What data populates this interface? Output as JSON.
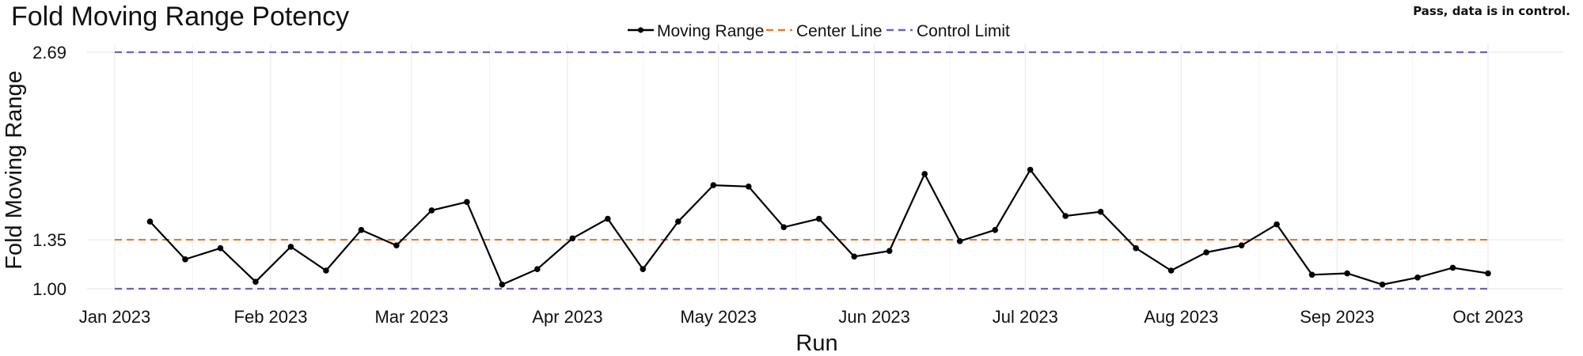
{
  "header": {
    "title": "Fold Moving Range Potency",
    "status": "Pass, data is in control."
  },
  "chart_data": {
    "type": "line",
    "title": "Fold Moving Range Potency",
    "xlabel": "Run",
    "ylabel": "Fold Moving Range",
    "ylim": [
      1.0,
      2.69
    ],
    "y_ticks": [
      1.0,
      1.35,
      2.69
    ],
    "y_tick_labels": [
      "1.00",
      "1.35",
      "2.69"
    ],
    "x_ticks": [
      "2023-01-01",
      "2023-02-01",
      "2023-03-01",
      "2023-04-01",
      "2023-05-01",
      "2023-06-01",
      "2023-07-01",
      "2023-08-01",
      "2023-09-01",
      "2023-10-01"
    ],
    "x_tick_labels": [
      "Jan 2023",
      "Feb 2023",
      "Mar 2023",
      "Apr 2023",
      "May 2023",
      "Jun 2023",
      "Jul 2023",
      "Aug 2023",
      "Sep 2023",
      "Oct 2023"
    ],
    "grid": true,
    "legend_position": "top",
    "center_line": 1.35,
    "control_limits": [
      1.0,
      2.69
    ],
    "colors": {
      "moving_range": "#000000",
      "center_line": "#E8792B",
      "control_limit": "#6B63B5",
      "grid": "#EBEBEB"
    },
    "series": [
      {
        "name": "Moving Range",
        "points": [
          [
            "2023-01-08",
            1.48
          ],
          [
            "2023-01-15",
            1.21
          ],
          [
            "2023-01-22",
            1.29
          ],
          [
            "2023-01-29",
            1.05
          ],
          [
            "2023-02-05",
            1.3
          ],
          [
            "2023-02-12",
            1.13
          ],
          [
            "2023-02-19",
            1.42
          ],
          [
            "2023-02-26",
            1.31
          ],
          [
            "2023-03-05",
            1.56
          ],
          [
            "2023-03-12",
            1.62
          ],
          [
            "2023-03-19",
            1.03
          ],
          [
            "2023-03-26",
            1.14
          ],
          [
            "2023-04-02",
            1.36
          ],
          [
            "2023-04-09",
            1.5
          ],
          [
            "2023-04-16",
            1.14
          ],
          [
            "2023-04-23",
            1.48
          ],
          [
            "2023-04-30",
            1.74
          ],
          [
            "2023-05-07",
            1.73
          ],
          [
            "2023-05-14",
            1.44
          ],
          [
            "2023-05-21",
            1.5
          ],
          [
            "2023-05-28",
            1.23
          ],
          [
            "2023-06-04",
            1.27
          ],
          [
            "2023-06-11",
            1.82
          ],
          [
            "2023-06-18",
            1.34
          ],
          [
            "2023-06-25",
            1.42
          ],
          [
            "2023-07-02",
            1.85
          ],
          [
            "2023-07-09",
            1.52
          ],
          [
            "2023-07-16",
            1.55
          ],
          [
            "2023-07-23",
            1.29
          ],
          [
            "2023-07-30",
            1.13
          ],
          [
            "2023-08-06",
            1.26
          ],
          [
            "2023-08-13",
            1.31
          ],
          [
            "2023-08-20",
            1.46
          ],
          [
            "2023-08-27",
            1.1
          ],
          [
            "2023-09-03",
            1.11
          ],
          [
            "2023-09-10",
            1.03
          ],
          [
            "2023-09-17",
            1.08
          ],
          [
            "2023-09-24",
            1.15
          ],
          [
            "2023-10-01",
            1.11
          ]
        ]
      },
      {
        "name": "Center Line"
      },
      {
        "name": "Control Limit"
      }
    ]
  }
}
